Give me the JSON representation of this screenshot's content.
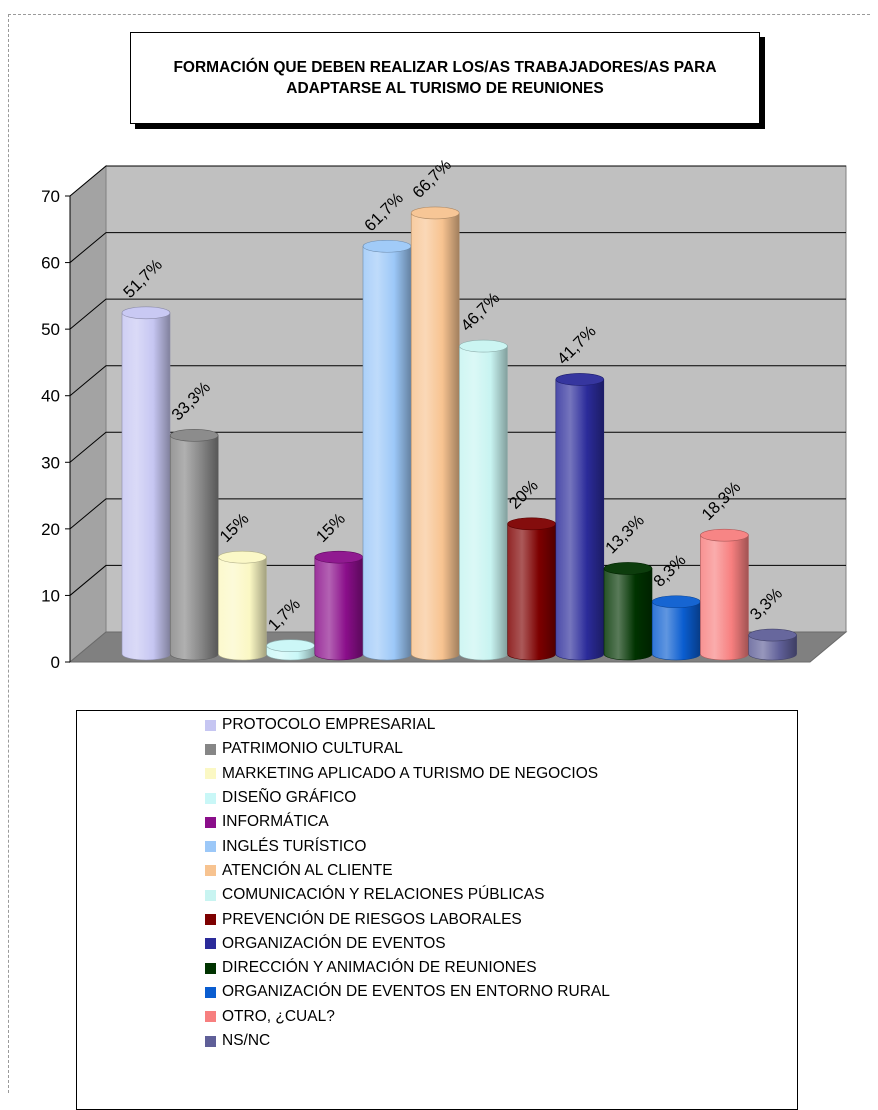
{
  "chart_data": {
    "type": "bar",
    "title": "FORMACIÓN QUE DEBEN REALIZAR LOS/AS TRABAJADORES/AS PARA ADAPTARSE AL TURISMO DE REUNIONES",
    "ylim": [
      0,
      70
    ],
    "yticks": [
      "0",
      "10",
      "20",
      "30",
      "40",
      "50",
      "60",
      "70"
    ],
    "grid": true,
    "legend_position": "bottom",
    "categories": [
      "PROTOCOLO EMPRESARIAL",
      "PATRIMONIO CULTURAL",
      "MARKETING APLICADO A TURISMO DE NEGOCIOS",
      "DISEÑO GRÁFICO",
      "INFORMÁTICA",
      "INGLÉS TURÍSTICO",
      "ATENCIÓN AL CLIENTE",
      "COMUNICACIÓN Y RELACIONES PÚBLICAS",
      "PREVENCIÓN DE RIESGOS LABORALES",
      "ORGANIZACIÓN DE EVENTOS",
      "DIRECCIÓN Y ANIMACIÓN DE REUNIONES",
      "ORGANIZACIÓN DE EVENTOS EN ENTORNO RURAL",
      "OTRO, ¿CUAL?",
      "NS/NC"
    ],
    "values": [
      51.7,
      33.3,
      15,
      1.7,
      15,
      61.7,
      66.7,
      46.7,
      20,
      41.7,
      13.3,
      8.3,
      18.3,
      3.3
    ],
    "labels": [
      "51,7%",
      "33,3%",
      "15%",
      "1,7%",
      "15%",
      "61,7%",
      "66,7%",
      "46,7%",
      "20%",
      "41,7%",
      "13,3%",
      "8,3%",
      "18,3%",
      "3,3%"
    ],
    "colors": [
      "#c6c6f2",
      "#868686",
      "#fbf8c4",
      "#c9f7f7",
      "#8a0e8a",
      "#9cc8f8",
      "#f7c390",
      "#c8f4f1",
      "#7d0000",
      "#2b2b9a",
      "#003300",
      "#0a5dd0",
      "#f77f7f",
      "#5f5f98"
    ]
  }
}
